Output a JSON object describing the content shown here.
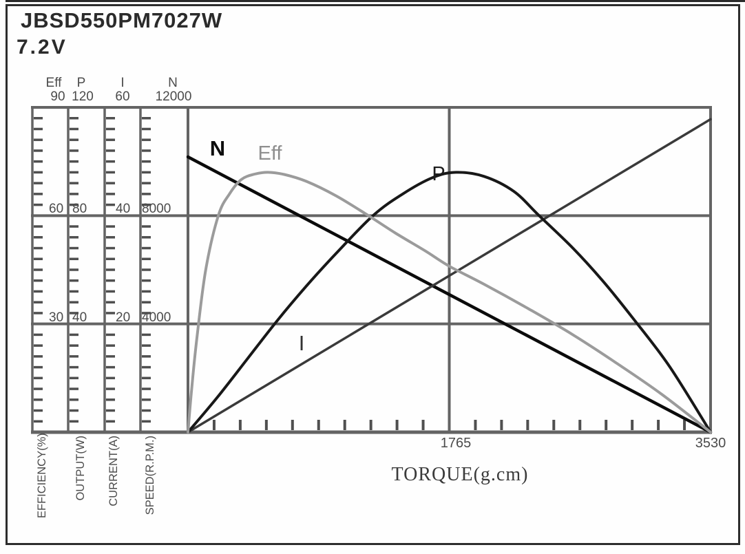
{
  "chart_data": {
    "type": "line",
    "title": "JBSD550PM7027W",
    "subtitle": "7.2V",
    "grid": "on",
    "legend_position": "inline-curve-labels",
    "x_axis": {
      "label": "TORQUE(g.cm)",
      "min": 0,
      "max": 3530,
      "gridline_value": 1765,
      "tick_labels": [
        "1765",
        "3530"
      ],
      "minor_tick_intervals": 20
    },
    "y_axes": [
      {
        "id": "eff",
        "name": "Eff",
        "top_value": "90",
        "max": 90,
        "unit": "EFFICIENCY(%)",
        "gridline_labels": [
          "60",
          "30"
        ]
      },
      {
        "id": "p",
        "name": "P",
        "top_value": "120",
        "max": 120,
        "unit": "OUTPUT(W)",
        "gridline_labels": [
          "80",
          "40"
        ]
      },
      {
        "id": "i",
        "name": "I",
        "top_value": "60",
        "max": 60,
        "unit": "CURRENT(A)",
        "gridline_labels": [
          "40",
          "20"
        ]
      },
      {
        "id": "n",
        "name": "N",
        "top_value": "12000",
        "max": 12000,
        "unit": "SPEED(R.P.M.)",
        "gridline_labels": [
          "8000",
          "4000"
        ]
      }
    ],
    "series": [
      {
        "name": "N",
        "axis": "n",
        "color": "#0b0b0b",
        "stroke_width": 4.5,
        "smooth": false,
        "points": [
          [
            0,
            10170
          ],
          [
            3530,
            0
          ]
        ]
      },
      {
        "name": "I",
        "axis": "i",
        "color": "#3a3a3a",
        "stroke_width": 3.5,
        "smooth": false,
        "points": [
          [
            0,
            0
          ],
          [
            3530,
            57.8
          ]
        ]
      },
      {
        "name": "P",
        "axis": "p",
        "color": "#181818",
        "stroke_width": 4,
        "smooth": true,
        "points": [
          [
            0,
            0
          ],
          [
            200,
            13
          ],
          [
            400,
            27
          ],
          [
            600,
            41
          ],
          [
            800,
            54
          ],
          [
            1000,
            66
          ],
          [
            1250,
            80
          ],
          [
            1450,
            88
          ],
          [
            1650,
            94
          ],
          [
            1810,
            96
          ],
          [
            2000,
            94.5
          ],
          [
            2200,
            89
          ],
          [
            2372,
            80
          ],
          [
            2600,
            68
          ],
          [
            2800,
            56
          ],
          [
            3000,
            42.5
          ],
          [
            3250,
            24.5
          ],
          [
            3530,
            0
          ]
        ]
      },
      {
        "name": "Eff",
        "axis": "eff",
        "color": "#9b9b9b",
        "stroke_width": 4,
        "smooth": true,
        "points": [
          [
            0,
            0
          ],
          [
            25,
            12
          ],
          [
            60,
            26
          ],
          [
            120,
            45
          ],
          [
            205,
            60
          ],
          [
            280,
            66
          ],
          [
            360,
            70
          ],
          [
            450,
            71.5
          ],
          [
            540,
            72
          ],
          [
            650,
            71.4
          ],
          [
            800,
            69.5
          ],
          [
            1000,
            65.5
          ],
          [
            1200,
            60.5
          ],
          [
            1400,
            55.2
          ],
          [
            1600,
            50.3
          ],
          [
            1765,
            46
          ],
          [
            2000,
            41
          ],
          [
            2300,
            34.2
          ],
          [
            2600,
            27
          ],
          [
            2900,
            19
          ],
          [
            3200,
            10.5
          ],
          [
            3530,
            0
          ]
        ]
      }
    ]
  },
  "curve_labels": {
    "n": "N",
    "eff": "Eff",
    "p": "P",
    "i": "I"
  }
}
